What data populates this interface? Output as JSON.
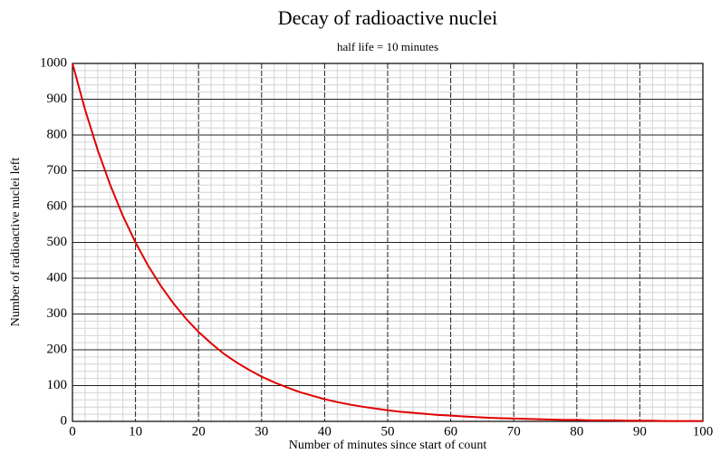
{
  "chart_data": {
    "type": "line",
    "title": "Decay of radioactive nuclei",
    "subtitle": "half life = 10 minutes",
    "x_label": "Number of minutes since start of count",
    "y_label": "Number of radioactive nuclei left",
    "x": [
      0,
      2,
      4,
      6,
      8,
      10,
      12,
      14,
      16,
      18,
      20,
      22,
      24,
      26,
      28,
      30,
      32,
      34,
      36,
      38,
      40,
      42,
      44,
      46,
      48,
      50,
      52,
      54,
      56,
      58,
      60,
      62,
      64,
      66,
      68,
      70,
      72,
      74,
      76,
      78,
      80,
      82,
      84,
      86,
      88,
      90,
      92,
      94,
      96,
      98,
      100
    ],
    "series": [
      {
        "name": "N",
        "color": "#e00000",
        "values": [
          1000,
          871,
          758,
          660,
          574,
          500,
          435,
          379,
          330,
          287,
          250,
          218,
          189,
          165,
          144,
          125,
          109,
          95,
          82,
          72,
          62,
          54,
          47,
          41,
          36,
          31,
          27,
          24,
          21,
          18,
          16,
          14,
          12,
          10,
          9,
          8,
          7,
          6,
          5,
          4,
          4,
          3,
          3,
          3,
          2,
          2,
          2,
          1,
          1,
          1,
          1
        ]
      }
    ],
    "xlim": [
      0,
      100
    ],
    "xticks": [
      0,
      10,
      20,
      30,
      40,
      50,
      60,
      70,
      80,
      90,
      100
    ],
    "ylim": [
      0,
      1000
    ],
    "yticks": [
      0,
      100,
      200,
      300,
      400,
      500,
      600,
      700,
      800,
      900,
      1000
    ],
    "grid": true
  }
}
